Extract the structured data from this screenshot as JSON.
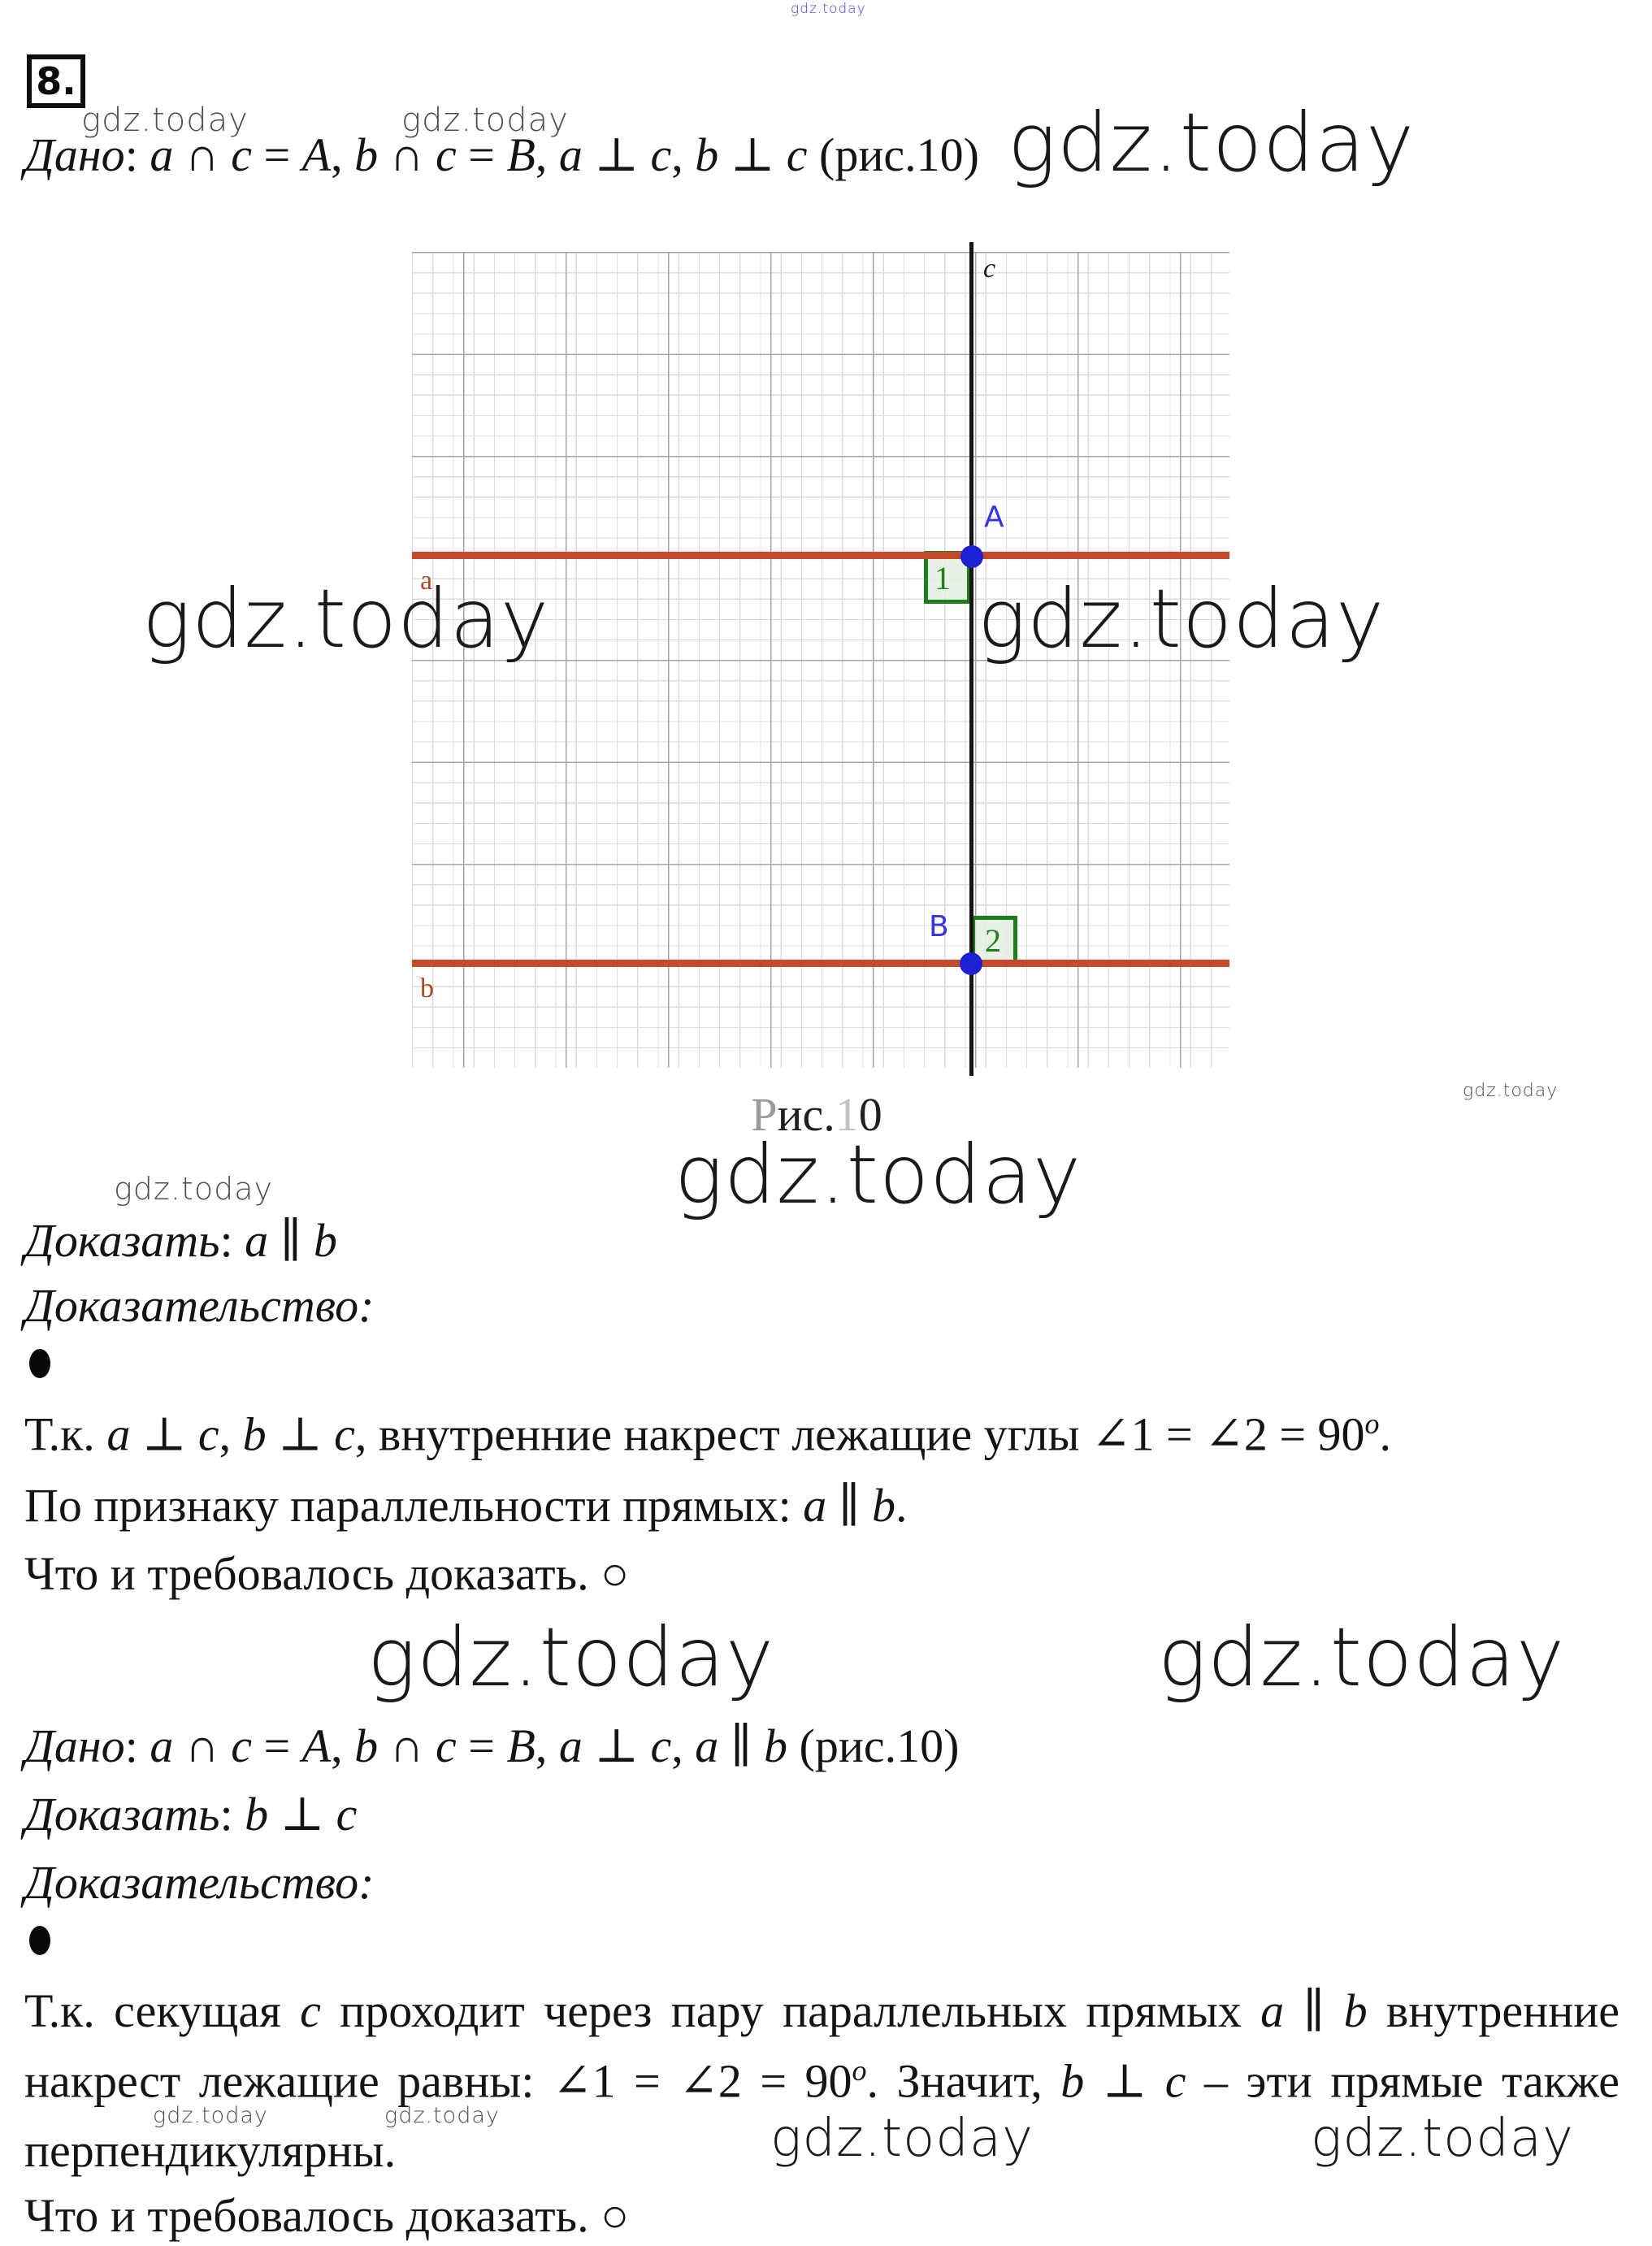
{
  "page": {
    "number_label": "8."
  },
  "watermark": {
    "text": "gdz.today"
  },
  "figure": {
    "labels": {
      "c": "c",
      "a": "a",
      "b": "b",
      "A": "A",
      "B": "B",
      "angle1": "1",
      "angle2": "2"
    },
    "caption_segments": [
      {
        "t": "Р",
        "c": "#9a9a9a"
      },
      {
        "t": "ис.",
        "c": "#1f1f1f"
      },
      {
        "t": "1",
        "c": "#c2c2c2"
      },
      {
        "t": "0",
        "c": "#1f1f1f"
      }
    ],
    "colors": {
      "text": "#141414",
      "line_ab": "#C5492B",
      "line_c": "#151515",
      "point": "#1F1FD4",
      "label_blue": "#3434E0",
      "label_red": "#A84A28",
      "square_border": "#1E7E1E",
      "square_fill": "rgba(227,240,224,0.85)",
      "grid_minor": "#dcdcdc",
      "grid_major": "#a6a6a6",
      "wm_gray": "#4f4f4f",
      "wm_blue": "#4040cc"
    }
  },
  "lines": {
    "dano1": [
      {
        "t": "Дано",
        "i": 1
      },
      {
        "t": ": "
      },
      {
        "t": "a",
        "i": 1
      },
      {
        "t": " ∩ "
      },
      {
        "t": "c",
        "i": 1
      },
      {
        "t": " = "
      },
      {
        "t": "A",
        "i": 1
      },
      {
        "t": ",  "
      },
      {
        "t": "b",
        "i": 1
      },
      {
        "t": " ∩ "
      },
      {
        "t": "c",
        "i": 1
      },
      {
        "t": " = "
      },
      {
        "t": "B",
        "i": 1
      },
      {
        "t": ", "
      },
      {
        "t": "a",
        "i": 1
      },
      {
        "t": " ⊥ "
      },
      {
        "t": "c",
        "i": 1
      },
      {
        "t": ", "
      },
      {
        "t": "b",
        "i": 1
      },
      {
        "t": " ⊥ "
      },
      {
        "t": "c",
        "i": 1
      },
      {
        "t": " (рис.10)"
      }
    ],
    "dokazat1": [
      {
        "t": "Доказать",
        "i": 1
      },
      {
        "t": ": "
      },
      {
        "t": "a",
        "i": 1
      },
      {
        "t": " ∥ "
      },
      {
        "t": "b",
        "i": 1
      }
    ],
    "dokazatelstvo1": [
      {
        "t": "Доказательство:",
        "i": 1
      }
    ],
    "p1l1": [
      {
        "t": "Т.к. "
      },
      {
        "t": "a",
        "i": 1
      },
      {
        "t": " ⊥ "
      },
      {
        "t": "c",
        "i": 1
      },
      {
        "t": ", "
      },
      {
        "t": "b",
        "i": 1
      },
      {
        "t": " ⊥ "
      },
      {
        "t": "c",
        "i": 1
      },
      {
        "t": ", внутренние накрест лежащие углы ∠1 = ∠2 = 90"
      },
      {
        "t": "o",
        "sup": 1,
        "i": 1
      },
      {
        "t": "."
      }
    ],
    "p1l2": [
      {
        "t": "По признаку параллельности прямых: "
      },
      {
        "t": "a",
        "i": 1
      },
      {
        "t": " ∥ "
      },
      {
        "t": "b",
        "i": 1
      },
      {
        "t": "."
      }
    ],
    "p1l3": [
      {
        "t": "Что и требовалось доказать. ○"
      }
    ],
    "dano2": [
      {
        "t": "Дано",
        "i": 1
      },
      {
        "t": ": "
      },
      {
        "t": "a",
        "i": 1
      },
      {
        "t": " ∩ "
      },
      {
        "t": "c",
        "i": 1
      },
      {
        "t": " = "
      },
      {
        "t": "A",
        "i": 1
      },
      {
        "t": ",  "
      },
      {
        "t": "b",
        "i": 1
      },
      {
        "t": " ∩ "
      },
      {
        "t": "c",
        "i": 1
      },
      {
        "t": " = "
      },
      {
        "t": "B",
        "i": 1
      },
      {
        "t": ", "
      },
      {
        "t": "a",
        "i": 1
      },
      {
        "t": " ⊥ "
      },
      {
        "t": "c",
        "i": 1
      },
      {
        "t": ", "
      },
      {
        "t": "a",
        "i": 1
      },
      {
        "t": " ∥ "
      },
      {
        "t": "b",
        "i": 1
      },
      {
        "t": " (рис.10)"
      }
    ],
    "dokazat2": [
      {
        "t": "Доказать",
        "i": 1
      },
      {
        "t": ": "
      },
      {
        "t": "b",
        "i": 1
      },
      {
        "t": " ⊥ "
      },
      {
        "t": "c",
        "i": 1
      }
    ],
    "dokazatelstvo2": [
      {
        "t": "Доказательство:",
        "i": 1
      }
    ],
    "p2l1": [
      {
        "t": "Т.к. секущая "
      },
      {
        "t": "c",
        "i": 1
      },
      {
        "t": " проходит через пару параллельных прямых "
      },
      {
        "t": "a",
        "i": 1
      },
      {
        "t": " ∥ "
      },
      {
        "t": "b",
        "i": 1
      },
      {
        "t": " внутренние"
      }
    ],
    "p2l2": [
      {
        "t": "накрест лежащие равны: ∠1 = ∠2 = 90"
      },
      {
        "t": "o",
        "sup": 1,
        "i": 1
      },
      {
        "t": ". Значит, "
      },
      {
        "t": "b",
        "i": 1
      },
      {
        "t": " ⊥ "
      },
      {
        "t": "c",
        "i": 1
      },
      {
        "t": " – эти прямые также"
      }
    ],
    "p2l3": [
      {
        "t": "перпендикулярны."
      }
    ],
    "p2l4": [
      {
        "t": "Что и требовалось доказать. ○"
      }
    ]
  }
}
